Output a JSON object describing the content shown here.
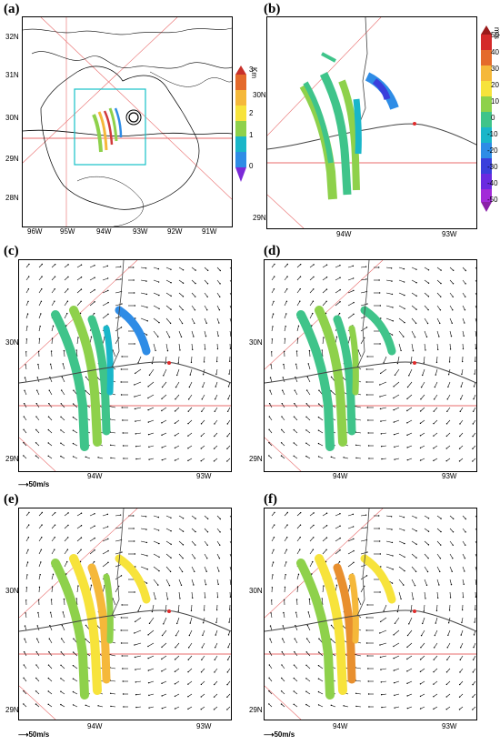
{
  "panels": [
    {
      "id": "a",
      "label": "(a)"
    },
    {
      "id": "b",
      "label": "(b)"
    },
    {
      "id": "c",
      "label": "(c)"
    },
    {
      "id": "d",
      "label": "(d)"
    },
    {
      "id": "e",
      "label": "(e)"
    },
    {
      "id": "f",
      "label": "(f)"
    }
  ],
  "panel_a": {
    "lat_ticks": [
      "32N",
      "31N",
      "30N",
      "29N",
      "28N"
    ],
    "lon_ticks": [
      "96W",
      "95W",
      "94W",
      "93W",
      "92W",
      "91W"
    ],
    "colorbar_ticks": [
      "3",
      "2",
      "1",
      "0"
    ],
    "colorbar_unit": "Km"
  },
  "panel_b": {
    "lat_ticks": [
      "30N",
      "29N"
    ],
    "lon_ticks": [
      "94W",
      "93W"
    ],
    "colorbar_ticks": [
      "50",
      "40",
      "30",
      "20",
      "10",
      "0",
      "-10",
      "-20",
      "-30",
      "-40",
      "-50"
    ],
    "colorbar_unit": "m/s"
  },
  "panels_cdef": {
    "lat_ticks": [
      "30N",
      "29N"
    ],
    "lon_ticks": [
      "94W",
      "93W"
    ],
    "ref_vector_value": "50",
    "ref_vector_unit": "m/s"
  },
  "colors": {
    "bands_positive": [
      "#f7e33b",
      "#f5b83a",
      "#e88f2e"
    ],
    "bands_negative": [
      "#19b6c9",
      "#2e8ce6",
      "#3a3fdc"
    ],
    "green": "#8ed14b",
    "teal": "#3fc48a",
    "red_line": "#e86b6b",
    "box_cyan": "#16c1c8"
  }
}
